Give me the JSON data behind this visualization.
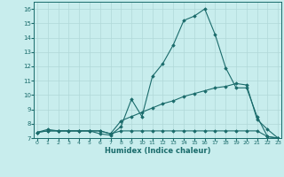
{
  "xlabel": "Humidex (Indice chaleur)",
  "background_color": "#c8eded",
  "grid_color": "#b0d8d8",
  "line_color": "#1a6b6b",
  "xlim": [
    -0.3,
    23.3
  ],
  "ylim": [
    7.0,
    16.5
  ],
  "xticks": [
    0,
    1,
    2,
    3,
    4,
    5,
    6,
    7,
    8,
    9,
    10,
    11,
    12,
    13,
    14,
    15,
    16,
    17,
    18,
    19,
    20,
    21,
    22,
    23
  ],
  "yticks": [
    7,
    8,
    9,
    10,
    11,
    12,
    13,
    14,
    15,
    16
  ],
  "line1_x": [
    0,
    1,
    2,
    3,
    4,
    5,
    6,
    7,
    8,
    9,
    10,
    11,
    12,
    13,
    14,
    15,
    16,
    17,
    18,
    19,
    20,
    21,
    22,
    23
  ],
  "line1_y": [
    7.4,
    7.6,
    7.5,
    7.5,
    7.5,
    7.5,
    7.3,
    7.2,
    7.8,
    9.7,
    8.5,
    11.3,
    12.2,
    13.5,
    15.2,
    15.5,
    16.0,
    14.2,
    11.9,
    10.5,
    10.5,
    8.5,
    7.1,
    7.0
  ],
  "line2_x": [
    0,
    1,
    2,
    3,
    4,
    5,
    6,
    7,
    8,
    9,
    10,
    11,
    12,
    13,
    14,
    15,
    16,
    17,
    18,
    19,
    20,
    21,
    22,
    23
  ],
  "line2_y": [
    7.4,
    7.5,
    7.5,
    7.5,
    7.5,
    7.5,
    7.5,
    7.3,
    8.2,
    8.5,
    8.8,
    9.1,
    9.4,
    9.6,
    9.9,
    10.1,
    10.3,
    10.5,
    10.6,
    10.8,
    10.7,
    8.3,
    7.6,
    7.0
  ],
  "line3_x": [
    0,
    1,
    2,
    3,
    4,
    5,
    6,
    7,
    8,
    9,
    10,
    11,
    12,
    13,
    14,
    15,
    16,
    17,
    18,
    19,
    20,
    21,
    22,
    23
  ],
  "line3_y": [
    7.4,
    7.5,
    7.5,
    7.5,
    7.5,
    7.5,
    7.5,
    7.3,
    7.5,
    7.5,
    7.5,
    7.5,
    7.5,
    7.5,
    7.5,
    7.5,
    7.5,
    7.5,
    7.5,
    7.5,
    7.5,
    7.5,
    7.1,
    7.0
  ]
}
